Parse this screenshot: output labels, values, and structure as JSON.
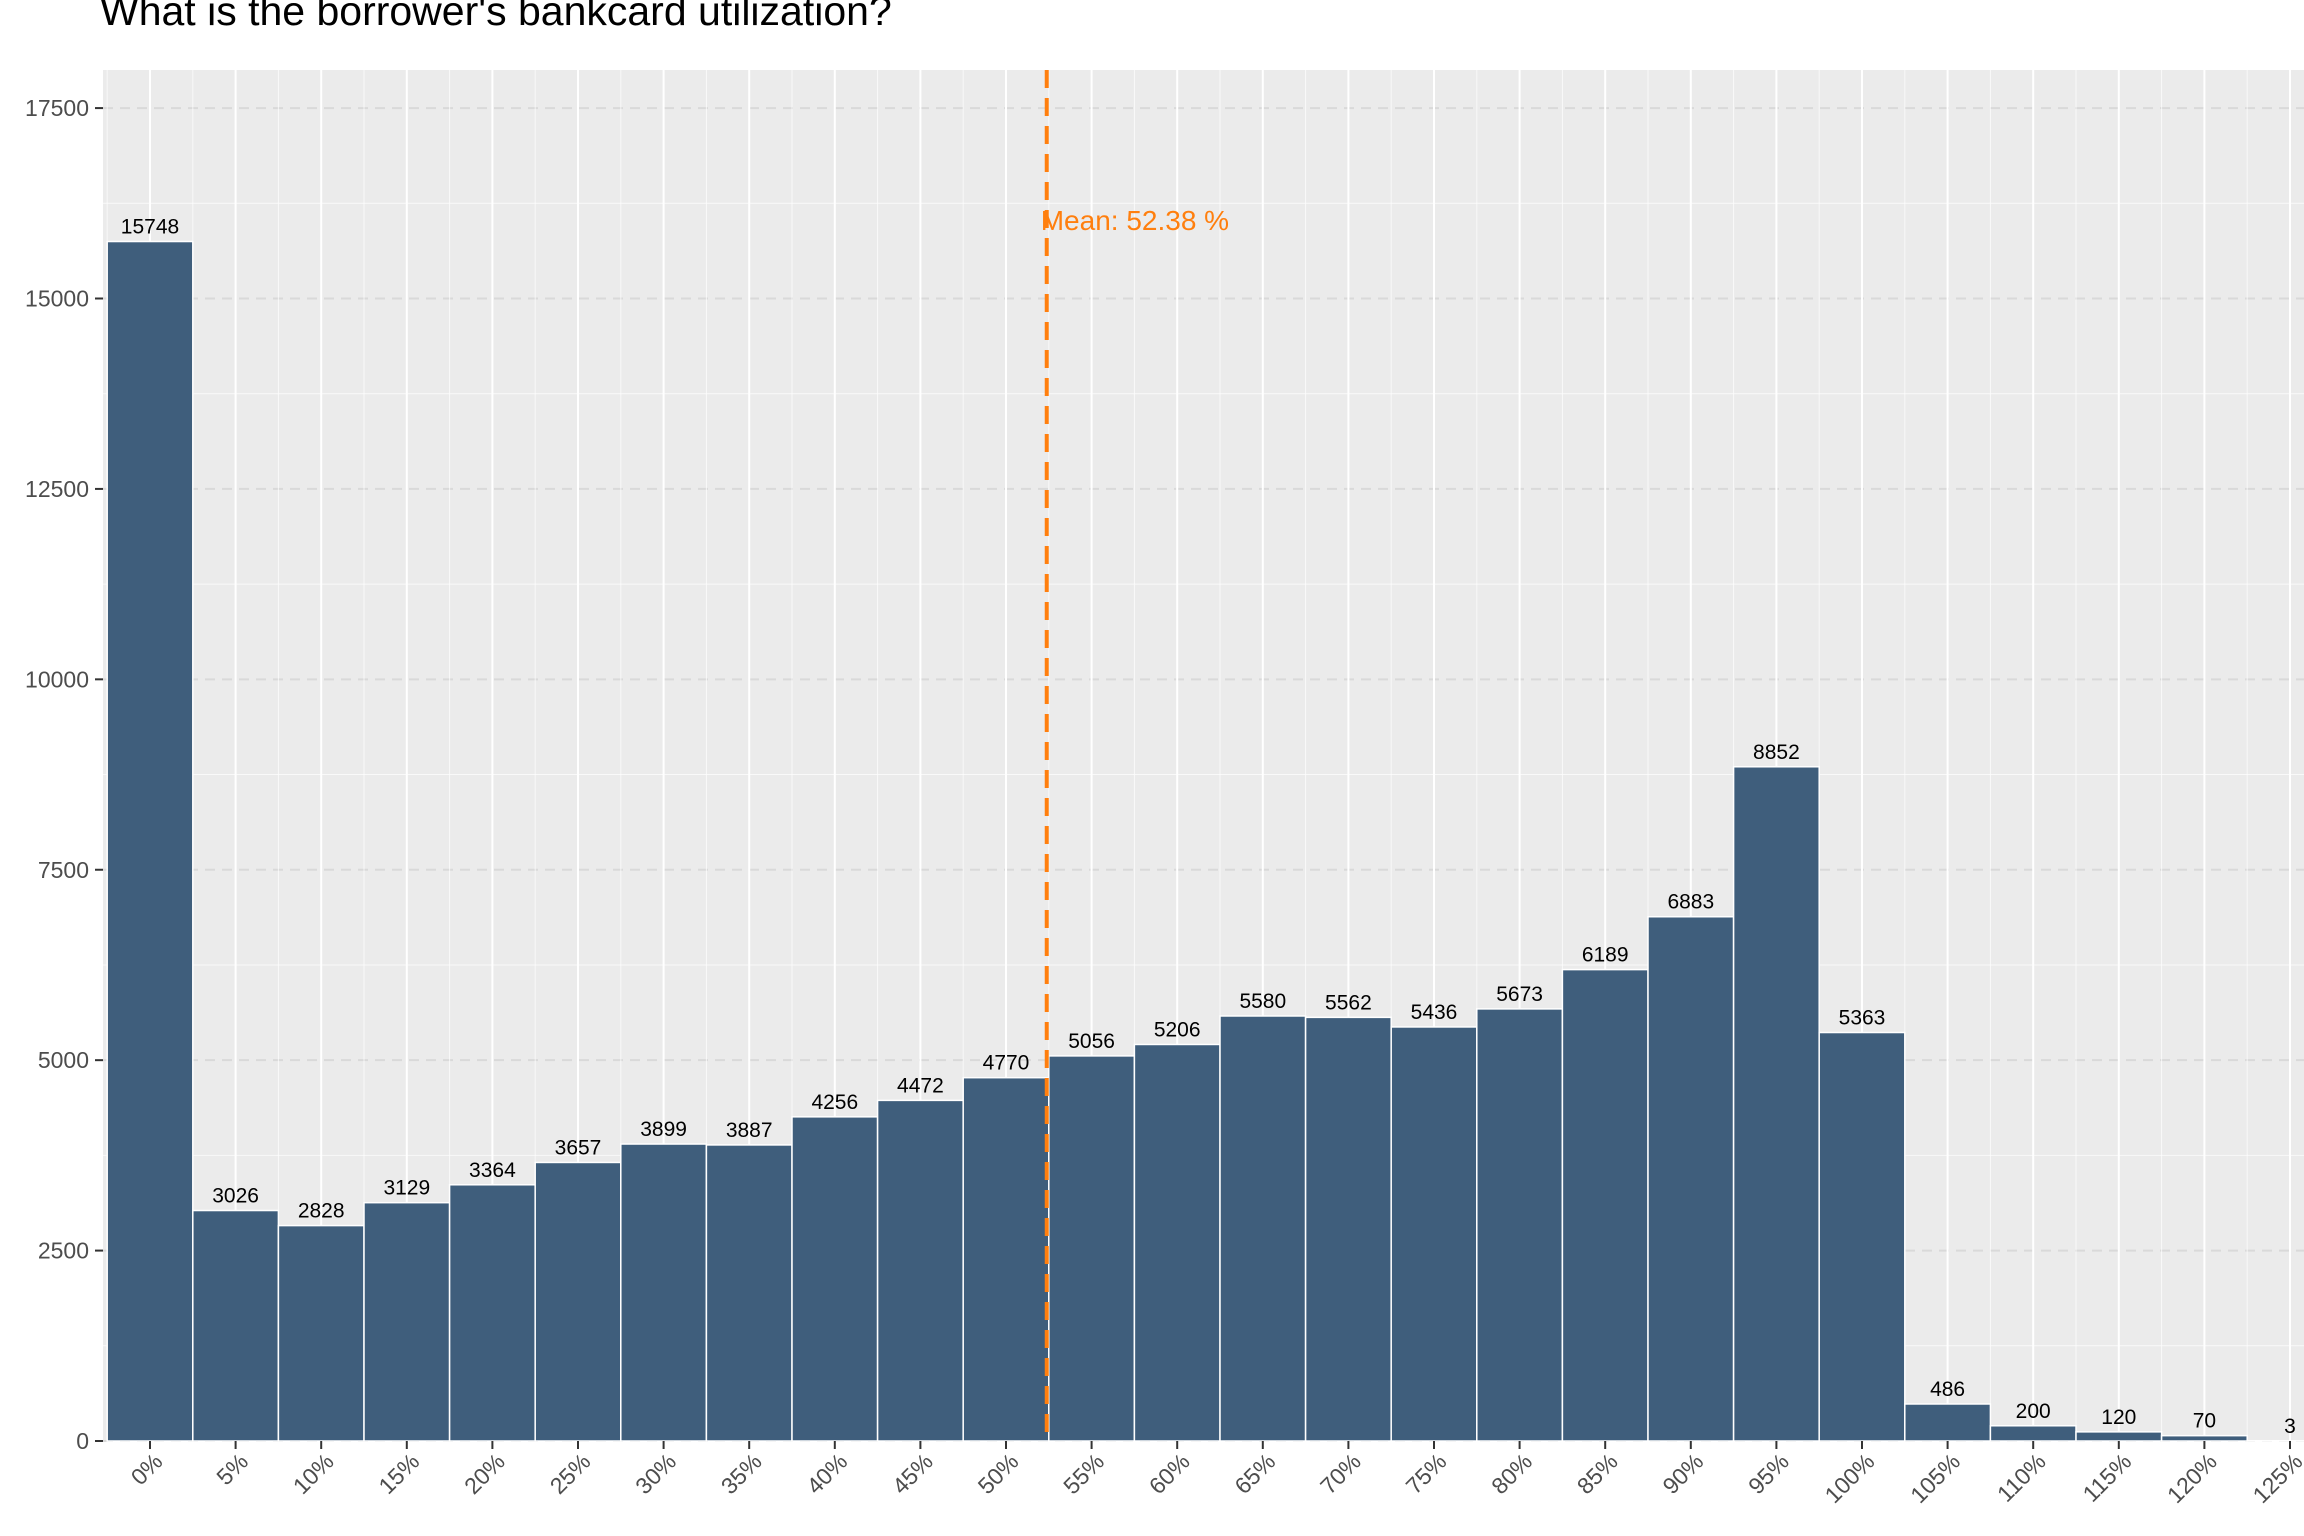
{
  "chart_data": {
    "type": "bar",
    "title": "What is the borrower's bankcard utilization?",
    "xlabel": "",
    "ylabel": "",
    "categories": [
      "0%",
      "5%",
      "10%",
      "15%",
      "20%",
      "25%",
      "30%",
      "35%",
      "40%",
      "45%",
      "50%",
      "55%",
      "60%",
      "65%",
      "70%",
      "75%",
      "80%",
      "85%",
      "90%",
      "95%",
      "100%",
      "105%",
      "110%",
      "115%",
      "120%",
      "125%"
    ],
    "values": [
      15748,
      3026,
      2828,
      3129,
      3364,
      3657,
      3899,
      3887,
      4256,
      4472,
      4770,
      5056,
      5206,
      5580,
      5562,
      5436,
      5673,
      6189,
      6883,
      8852,
      5363,
      486,
      200,
      120,
      70,
      3
    ],
    "data_labels": [
      "15748",
      "3026",
      "2828",
      "3129",
      "3364",
      "3657",
      "3899",
      "3887",
      "4256",
      "4472",
      "4770",
      "5056",
      "5206",
      "5580",
      "5562",
      "5436",
      "5673",
      "6189",
      "6883",
      "8852",
      "5363",
      "486",
      "200",
      "120",
      "70",
      "3"
    ],
    "y_ticks": [
      0,
      2500,
      5000,
      7500,
      10000,
      12500,
      15000,
      17500
    ],
    "y_tick_labels": [
      "0",
      "2500",
      "5000",
      "7500",
      "10000",
      "12500",
      "15000",
      "17500"
    ],
    "ylim": [
      0,
      18000
    ],
    "reference_line": {
      "value": 52.38,
      "label": "Mean: 52.38 %",
      "style": "dashed"
    },
    "grid": true,
    "legend": "none",
    "colors": {
      "bar": "#3f5e7c",
      "bar_outline": "#ffffff",
      "panel": "#ebebeb",
      "grid": "#ffffff",
      "grid_dashed": "#d9d9d9",
      "mean_line": "#ff7f0e",
      "tick_text": "#4d4d4d",
      "label_text": "#000000"
    }
  }
}
